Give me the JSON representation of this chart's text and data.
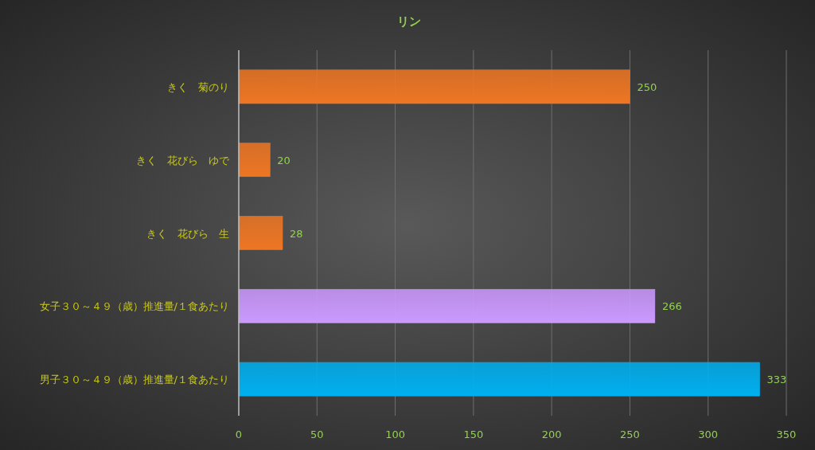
{
  "chart_data": {
    "type": "bar",
    "orientation": "horizontal",
    "title": "リン",
    "categories": [
      "きく　菊のり",
      "きく　花びら　ゆで",
      "きく　花びら　生",
      "女子３０～４９（歳）推進量/１食あたり",
      "男子３０～４９（歳）推進量/１食あたり"
    ],
    "values": [
      250,
      20,
      28,
      266,
      333
    ],
    "colors": [
      "#ee7623",
      "#ee7623",
      "#ee7623",
      "#cc99ff",
      "#00b0f0"
    ],
    "xlim": [
      0,
      350
    ],
    "xticks": [
      0,
      50,
      100,
      150,
      200,
      250,
      300,
      350
    ],
    "grid": "x",
    "data_labels": true
  }
}
